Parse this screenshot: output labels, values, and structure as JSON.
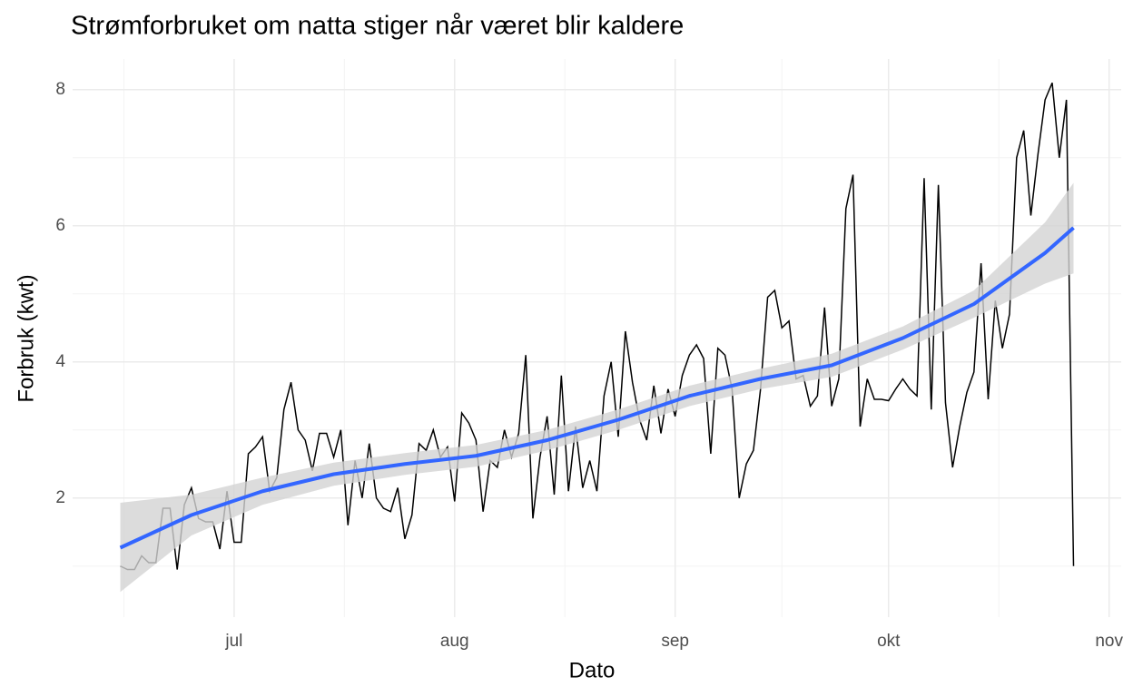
{
  "chart_data": {
    "type": "line",
    "title": "Strømforbruket om natta stiger når været blir kaldere",
    "x_label": "Dato",
    "y_label": "Forbruk (kwt)",
    "x": [
      166,
      167,
      168,
      169,
      170,
      171,
      172,
      173,
      174,
      175,
      176,
      177,
      178,
      179,
      180,
      181,
      182,
      183,
      184,
      185,
      186,
      187,
      188,
      189,
      190,
      191,
      192,
      193,
      194,
      195,
      196,
      197,
      198,
      199,
      200,
      201,
      202,
      203,
      204,
      205,
      206,
      207,
      208,
      209,
      210,
      211,
      212,
      213,
      214,
      215,
      216,
      217,
      218,
      219,
      220,
      221,
      222,
      223,
      224,
      225,
      226,
      227,
      228,
      229,
      230,
      231,
      232,
      233,
      234,
      235,
      236,
      237,
      238,
      239,
      240,
      241,
      242,
      243,
      244,
      245,
      246,
      247,
      248,
      249,
      250,
      251,
      252,
      253,
      254,
      255,
      256,
      257,
      258,
      259,
      260,
      261,
      262,
      263,
      264,
      265,
      266,
      267,
      268,
      269,
      270,
      271,
      272,
      273,
      274,
      275,
      276,
      277,
      278,
      279,
      280,
      281,
      282,
      283,
      284,
      285,
      286,
      287,
      288,
      289,
      290,
      291,
      292,
      293,
      294,
      295,
      296,
      297,
      298,
      299,
      300
    ],
    "series": [
      {
        "color": "#000000",
        "values": [
          1.0,
          0.95,
          0.95,
          1.15,
          1.05,
          1.05,
          1.85,
          1.85,
          0.95,
          1.9,
          2.15,
          1.7,
          1.65,
          1.65,
          1.25,
          2.1,
          1.35,
          1.35,
          2.65,
          2.75,
          2.9,
          2.1,
          2.3,
          3.3,
          3.7,
          3.0,
          2.85,
          2.4,
          2.95,
          2.95,
          2.6,
          3.0,
          1.6,
          2.55,
          2.0,
          2.8,
          2.0,
          1.85,
          1.8,
          2.15,
          1.4,
          1.75,
          2.8,
          2.7,
          3.0,
          2.6,
          2.75,
          1.95,
          3.25,
          3.1,
          2.85,
          1.8,
          2.55,
          2.45,
          3.0,
          2.6,
          2.95,
          4.1,
          1.7,
          2.6,
          3.2,
          2.05,
          3.8,
          2.1,
          3.05,
          2.15,
          2.55,
          2.1,
          3.5,
          4.0,
          2.9,
          4.45,
          3.7,
          3.15,
          2.85,
          3.65,
          2.95,
          3.6,
          3.2,
          3.8,
          4.1,
          4.25,
          4.05,
          2.65,
          4.2,
          4.1,
          3.6,
          2.0,
          2.5,
          2.7,
          3.6,
          4.95,
          5.05,
          4.5,
          4.6,
          3.75,
          3.8,
          3.35,
          3.5,
          4.8,
          3.35,
          3.75,
          6.25,
          6.75,
          3.05,
          3.75,
          3.45,
          3.45,
          3.43,
          3.6,
          3.75,
          3.6,
          3.5,
          6.7,
          3.3,
          6.6,
          3.4,
          2.45,
          3.05,
          3.55,
          3.85,
          5.45,
          3.45,
          4.9,
          4.2,
          4.7,
          7.0,
          7.4,
          6.15,
          7.05,
          7.85,
          8.1,
          7.0,
          7.85,
          1.0
        ]
      }
    ],
    "smooth": {
      "color": "#3366FF",
      "band_color": "#d3d3d3",
      "x": [
        166,
        176,
        186,
        196,
        206,
        216,
        226,
        236,
        246,
        256,
        266,
        276,
        286,
        296,
        300
      ],
      "values": [
        1.27,
        1.75,
        2.1,
        2.35,
        2.5,
        2.62,
        2.85,
        3.15,
        3.5,
        3.75,
        3.95,
        4.35,
        4.85,
        5.6,
        5.97
      ],
      "lower": [
        0.62,
        1.45,
        1.9,
        2.18,
        2.34,
        2.46,
        2.7,
        3.0,
        3.35,
        3.6,
        3.78,
        4.18,
        4.65,
        5.15,
        5.3
      ],
      "upper": [
        1.93,
        2.05,
        2.3,
        2.52,
        2.66,
        2.78,
        3.0,
        3.3,
        3.65,
        3.9,
        4.12,
        4.52,
        5.05,
        6.05,
        6.63
      ]
    },
    "xlim": [
      159.3,
      306.7
    ],
    "xticks": [
      {
        "value": 182,
        "label": "jul"
      },
      {
        "value": 213,
        "label": "aug"
      },
      {
        "value": 244,
        "label": "sep"
      },
      {
        "value": 274,
        "label": "okt"
      },
      {
        "value": 305,
        "label": "nov"
      }
    ],
    "minor_xticks": [
      166.5,
      197.5,
      228.5,
      259,
      289.5
    ],
    "ylim": [
      0.25,
      8.45
    ],
    "yticks": [
      2,
      4,
      6,
      8
    ],
    "minor_yticks": [
      1,
      3,
      5,
      7
    ],
    "grid": true
  }
}
